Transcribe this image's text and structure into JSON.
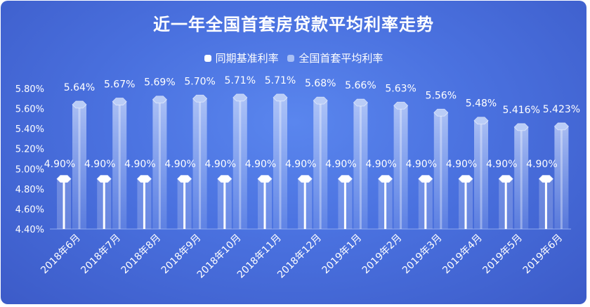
{
  "chart_data": {
    "type": "bar",
    "title": "近一年全国首套房贷款平均利率走势",
    "categories": [
      "2018年6月",
      "2018年7月",
      "2018年8月",
      "2018年9月",
      "2018年10月",
      "2018年11月",
      "2018年12月",
      "2019年1月",
      "2019年2月",
      "2019年3月",
      "2019年4月",
      "2019年5月",
      "2019年6月"
    ],
    "series": [
      {
        "name": "同期基准利率",
        "values": [
          4.9,
          4.9,
          4.9,
          4.9,
          4.9,
          4.9,
          4.9,
          4.9,
          4.9,
          4.9,
          4.9,
          4.9,
          4.9
        ],
        "labels": [
          "4.90%",
          "4.90%",
          "4.90%",
          "4.90%",
          "4.90%",
          "4.90%",
          "4.90%",
          "4.90%",
          "4.90%",
          "4.90%",
          "4.90%",
          "4.90%",
          "4.90%"
        ],
        "color": "#ffffff"
      },
      {
        "name": "全国首套平均利率",
        "values": [
          5.64,
          5.67,
          5.69,
          5.7,
          5.71,
          5.71,
          5.68,
          5.66,
          5.63,
          5.56,
          5.48,
          5.416,
          5.423
        ],
        "labels": [
          "5.64%",
          "5.67%",
          "5.69%",
          "5.70%",
          "5.71%",
          "5.71%",
          "5.68%",
          "5.66%",
          "5.63%",
          "5.56%",
          "5.48%",
          "5.416%",
          "5.423%"
        ],
        "color": "#a9c0f5"
      }
    ],
    "y_ticks": [
      "4.40%",
      "4.60%",
      "4.80%",
      "5.00%",
      "5.20%",
      "5.40%",
      "5.60%",
      "5.80%"
    ],
    "ylim": [
      4.4,
      5.8
    ],
    "legend_position": "top",
    "grid": false
  }
}
